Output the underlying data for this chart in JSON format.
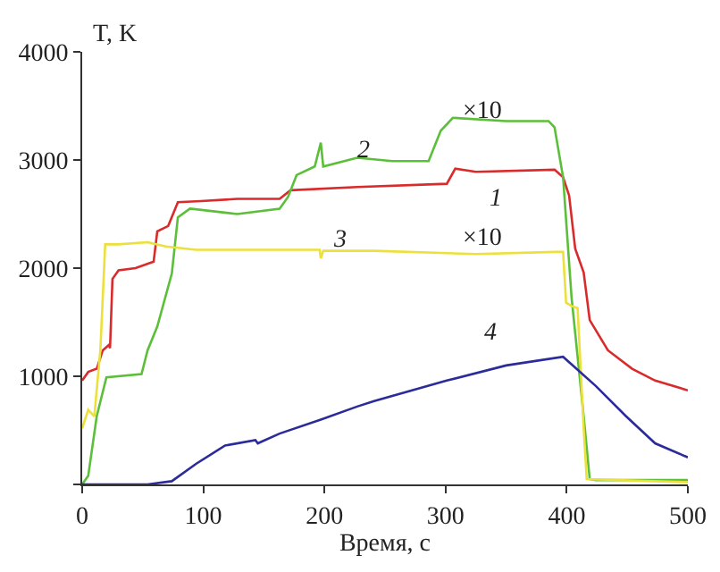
{
  "chart_data": {
    "type": "line",
    "xlabel": "Время, с",
    "ylabel": "T, K",
    "xlim": [
      0,
      500
    ],
    "xticks": [
      0,
      100,
      200,
      300,
      400,
      500
    ],
    "ylim": [
      0,
      4000
    ],
    "yticks": [
      {
        "value": 0,
        "label": null
      },
      1000,
      2000,
      3000,
      4000
    ],
    "grid": false,
    "legend": false,
    "marker": "none",
    "line_style": "solid",
    "annotations": [
      "×10",
      "×10"
    ],
    "series": [
      {
        "name": "1",
        "color": "#d92b2b",
        "x": [
          0,
          5,
          12,
          17,
          22,
          23,
          25,
          30,
          44,
          59,
          62,
          71,
          79,
          98,
          128,
          163,
          172,
          227,
          301,
          308,
          325,
          390,
          397,
          402,
          407,
          414,
          419,
          434,
          454,
          473,
          500
        ],
        "values": [
          960,
          1040,
          1070,
          1240,
          1290,
          1260,
          1900,
          1980,
          2000,
          2060,
          2340,
          2390,
          2610,
          2620,
          2640,
          2640,
          2720,
          2750,
          2780,
          2920,
          2890,
          2910,
          2840,
          2670,
          2180,
          1960,
          1520,
          1240,
          1070,
          960,
          870
        ]
      },
      {
        "name": "2",
        "color": "#5cbf3a",
        "x": [
          0,
          5,
          12,
          20,
          49,
          54,
          62,
          74,
          79,
          89,
          128,
          163,
          170,
          177,
          192,
          197,
          199,
          227,
          256,
          286,
          296,
          306,
          350,
          385,
          390,
          397,
          404,
          414,
          419,
          424,
          500
        ],
        "values": [
          0,
          80,
          630,
          990,
          1020,
          1240,
          1460,
          1950,
          2470,
          2550,
          2500,
          2550,
          2660,
          2860,
          2940,
          3160,
          2940,
          3020,
          2990,
          2990,
          3270,
          3390,
          3360,
          3360,
          3300,
          2840,
          1730,
          630,
          50,
          40,
          40
        ]
      },
      {
        "name": "3",
        "color": "#ece03c",
        "x": [
          0,
          5,
          10,
          15,
          19,
          30,
          54,
          69,
          94,
          177,
          196,
          197,
          199,
          241,
          325,
          390,
          397,
          399.5,
          404,
          409,
          414,
          416.5,
          500
        ],
        "values": [
          520,
          690,
          630,
          1240,
          2220,
          2220,
          2240,
          2200,
          2170,
          2170,
          2170,
          2090,
          2160,
          2160,
          2130,
          2150,
          2150,
          1680,
          1650,
          1630,
          520,
          50,
          20
        ]
      },
      {
        "name": "4",
        "color": "#2b2b9a",
        "x": [
          0,
          54,
          74,
          94,
          118,
          143,
          145,
          163,
          197,
          227,
          241,
          301,
          350,
          397,
          424,
          449,
          473,
          500
        ],
        "values": [
          0,
          0,
          30,
          190,
          360,
          410,
          380,
          470,
          600,
          720,
          770,
          960,
          1100,
          1180,
          910,
          630,
          380,
          250
        ]
      }
    ]
  }
}
